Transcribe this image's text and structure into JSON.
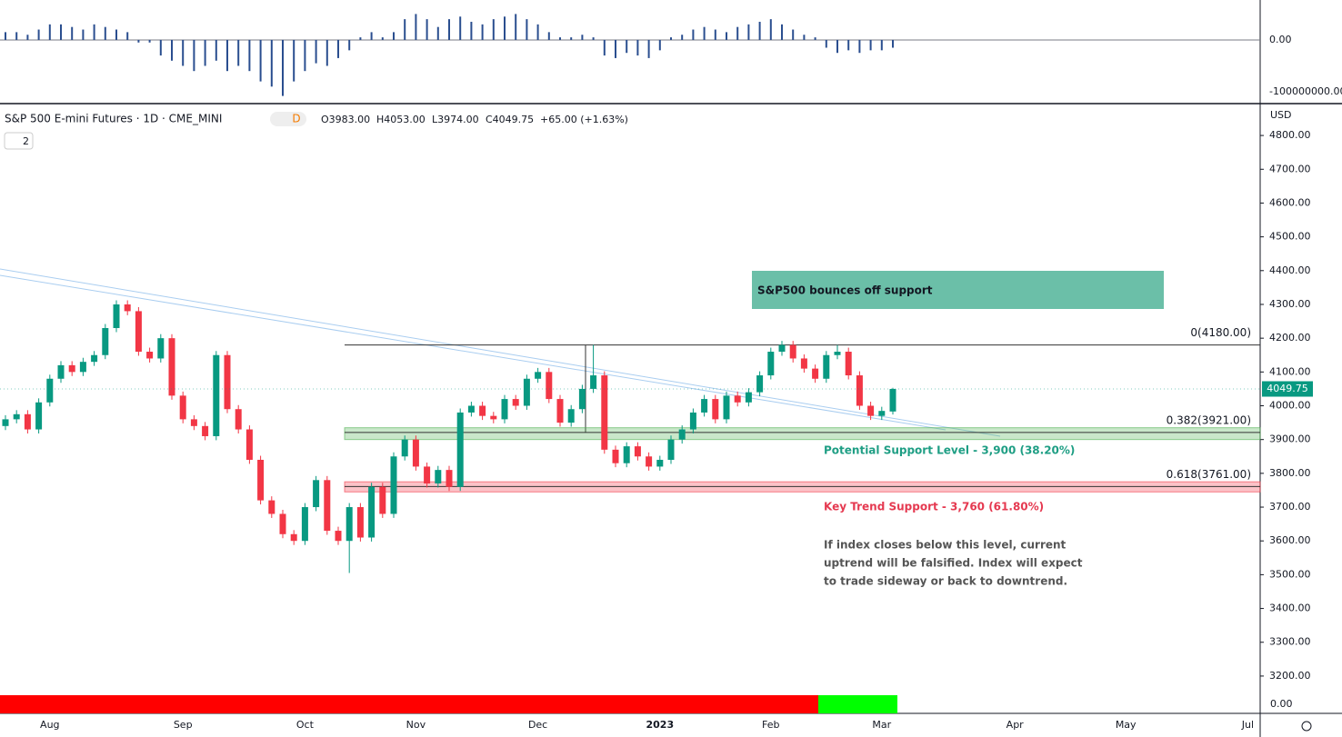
{
  "header": {
    "symbol": "S&P 500 E-mini Futures · 1D · CME_MINI",
    "interval_badge": "D",
    "open": "O3983.00",
    "high": "H4053.00",
    "low": "L3974.00",
    "close": "C4049.75",
    "change": "+65.00 (+1.63%)",
    "indicator_count": "2"
  },
  "bottom_panel": {
    "label": "0.00"
  },
  "chart_data": [
    {
      "type": "bar",
      "color": "#2a4e8f",
      "ylim": [
        -121000000,
        77000000
      ],
      "yticks": [
        {
          "value": 0,
          "label": "0.00"
        },
        {
          "value": -100000000,
          "label": "-100000000.00"
        }
      ],
      "values": [
        15000000.0,
        15000000.0,
        10000000.0,
        20000000.0,
        30000000.0,
        30000000.0,
        25000000.0,
        20000000.0,
        30000000.0,
        25000000.0,
        20000000.0,
        15000000.0,
        -5000000.0,
        -5000000.0,
        -30000000.0,
        -40000000.0,
        -50000000.0,
        -60000000.0,
        -50000000.0,
        -40000000.0,
        -60000000.0,
        -50000000.0,
        -60000000.0,
        -80000000.0,
        -90000000.0,
        -108000000.0,
        -80000000.0,
        -60000000.0,
        -45000000.0,
        -50000000.0,
        -35000000.0,
        -20000000.0,
        5000000.0,
        15000000.0,
        5000000.0,
        15000000.0,
        40000000.0,
        50000000.0,
        40000000.0,
        25000000.0,
        40000000.0,
        45000000.0,
        35000000.0,
        30000000.0,
        40000000.0,
        45000000.0,
        50000000.0,
        40000000.0,
        30000000.0,
        15000000.0,
        5000000.0,
        5000000.0,
        10000000.0,
        5000000.0,
        -30000000.0,
        -35000000.0,
        -25000000.0,
        -30000000.0,
        -35000000.0,
        -20000000.0,
        5000000.0,
        10000000.0,
        20000000.0,
        25000000.0,
        20000000.0,
        15000000.0,
        25000000.0,
        30000000.0,
        35000000.0,
        40000000.0,
        30000000.0,
        20000000.0,
        10000000.0,
        5000000.0,
        -15000000.0,
        -25000000.0,
        -20000000.0,
        -25000000.0,
        -20000000.0,
        -20000000.0,
        -15000000.0
      ]
    },
    {
      "type": "candlestick",
      "title": "S&P500 bounces off support",
      "currency": "USD",
      "up_color": "#089981",
      "down_color": "#f23645",
      "ylim": [
        3146,
        4889
      ],
      "yticks": [
        {
          "value": 3200,
          "label": "3200.00"
        },
        {
          "value": 3300,
          "label": "3300.00"
        },
        {
          "value": 3400,
          "label": "3400.00"
        },
        {
          "value": 3500,
          "label": "3500.00"
        },
        {
          "value": 3600,
          "label": "3600.00"
        },
        {
          "value": 3700,
          "label": "3700.00"
        },
        {
          "value": 3800,
          "label": "3800.00"
        },
        {
          "value": 3900,
          "label": "3900.00"
        },
        {
          "value": 4000,
          "label": "4000.00"
        },
        {
          "value": 4100,
          "label": "4100.00"
        },
        {
          "value": 4200,
          "label": "4200.00"
        },
        {
          "value": 4300,
          "label": "4300.00"
        },
        {
          "value": 4400,
          "label": "4400.00"
        },
        {
          "value": 4500,
          "label": "4500.00"
        },
        {
          "value": 4600,
          "label": "4600.00"
        },
        {
          "value": 4700,
          "label": "4700.00"
        },
        {
          "value": 4800,
          "label": "4800.00"
        }
      ],
      "last_price": {
        "value": 4049.75,
        "label": "4049.75"
      },
      "fib_levels": [
        {
          "value": 4180,
          "label": "0(4180.00)"
        },
        {
          "value": 3921,
          "label": "0.382(3921.00)"
        },
        {
          "value": 3761,
          "label": "0.618(3761.00)"
        }
      ],
      "zones": [
        {
          "name": "Potential Support Level - 3,900 (38.20%)",
          "range": [
            3900,
            3935
          ],
          "color": "#4caf50",
          "text_color": "#1e9e84"
        },
        {
          "name": "Key Trend Support - 3,760 (61.80%)",
          "range": [
            3745,
            3775
          ],
          "color": "#f23645",
          "text_color": "#e53950"
        }
      ],
      "note": [
        "If index closes below this level, current",
        "uptrend will be falsified. Index will expect",
        "to trade sideway or back to downtrend."
      ],
      "categories": [
        null,
        null,
        null,
        null,
        "Aug",
        null,
        null,
        null,
        null,
        null,
        null,
        null,
        null,
        null,
        null,
        null,
        "Sep",
        null,
        null,
        null,
        null,
        null,
        null,
        null,
        null,
        null,
        null,
        "Oct",
        null,
        null,
        null,
        null,
        null,
        null,
        null,
        null,
        null,
        "Nov",
        null,
        null,
        null,
        null,
        null,
        null,
        null,
        null,
        null,
        null,
        "Dec",
        null,
        null,
        null,
        null,
        null,
        null,
        null,
        null,
        null,
        null,
        "2023",
        null,
        null,
        null,
        null,
        null,
        null,
        null,
        null,
        null,
        "Feb",
        null,
        null,
        null,
        null,
        null,
        null,
        null,
        null,
        null,
        "Mar",
        null,
        null,
        null,
        null,
        null,
        null,
        null,
        null,
        null,
        null,
        null,
        "Apr",
        null,
        null,
        null,
        null,
        null,
        null,
        null,
        null,
        null,
        "May",
        null,
        null,
        null,
        null,
        null,
        null,
        null,
        null,
        null,
        null,
        "Jul"
      ],
      "open": [
        3940,
        3960,
        3975,
        3930,
        4010,
        4080,
        4120,
        4100,
        4130,
        4150,
        4230,
        4300,
        4280,
        4160,
        4140,
        4200,
        4030,
        3960,
        3940,
        3910,
        4150,
        3990,
        3930,
        3840,
        3720,
        3680,
        3620,
        3600,
        3700,
        3780,
        3630,
        3600,
        3700,
        3610,
        3760,
        3680,
        3850,
        3900,
        3820,
        3770,
        3810,
        3760,
        3980,
        4000,
        3970,
        3960,
        4020,
        4000,
        4080,
        4100,
        4020,
        3950,
        3990,
        4050,
        4090,
        3870,
        3830,
        3880,
        3850,
        3820,
        3840,
        3900,
        3930,
        3980,
        4020,
        3960,
        4030,
        4010,
        4040,
        4090,
        4160,
        4180,
        4140,
        4110,
        4080,
        4150,
        4160,
        4090,
        4000,
        3970,
        3983,
        null,
        null,
        null,
        null,
        null,
        null,
        null,
        null,
        null,
        null,
        null,
        null,
        null,
        null,
        null,
        null,
        null,
        null,
        null,
        null,
        null,
        null,
        null,
        null,
        null,
        null,
        null,
        null,
        null,
        null,
        null,
        null
      ],
      "high": [
        3972,
        3987,
        3987,
        4022,
        4092,
        4132,
        4132,
        4142,
        4162,
        4242,
        4312,
        4312,
        4292,
        4172,
        4212,
        4212,
        4042,
        3972,
        3952,
        4162,
        4162,
        4002,
        3942,
        3852,
        3732,
        3692,
        3632,
        3712,
        3792,
        3792,
        3642,
        3712,
        3712,
        3772,
        3772,
        3862,
        3912,
        3912,
        3832,
        3822,
        3822,
        3992,
        4012,
        4012,
        3982,
        4032,
        4032,
        4092,
        4112,
        4112,
        4032,
        4002,
        4062,
        4180,
        4102,
        3882,
        3892,
        3892,
        3862,
        3852,
        3912,
        3942,
        3992,
        4032,
        4032,
        4042,
        4042,
        4052,
        4102,
        4172,
        4192,
        4192,
        4152,
        4122,
        4162,
        4180,
        4172,
        4102,
        4012,
        3997,
        4053,
        null,
        null,
        null,
        null,
        null,
        null,
        null,
        null,
        null,
        null,
        null,
        null,
        null,
        null,
        null,
        null,
        null,
        null,
        null,
        null,
        null,
        null,
        null,
        null,
        null,
        null,
        null,
        null,
        null,
        null,
        null,
        null
      ],
      "low": [
        3928,
        3948,
        3918,
        3918,
        3998,
        4068,
        4088,
        4088,
        4118,
        4138,
        4218,
        4268,
        4148,
        4128,
        4128,
        4018,
        3948,
        3928,
        3898,
        3898,
        3978,
        3918,
        3828,
        3708,
        3668,
        3608,
        3588,
        3588,
        3688,
        3618,
        3588,
        3505,
        3598,
        3598,
        3668,
        3668,
        3838,
        3808,
        3758,
        3758,
        3748,
        3748,
        3968,
        3958,
        3948,
        3948,
        3988,
        3988,
        4068,
        4008,
        3938,
        3938,
        3978,
        4038,
        3858,
        3818,
        3818,
        3838,
        3808,
        3808,
        3828,
        3888,
        3918,
        3968,
        3948,
        3948,
        3998,
        3998,
        4028,
        4078,
        4148,
        4128,
        4098,
        4068,
        4068,
        4138,
        4078,
        3988,
        3958,
        3958,
        3974,
        null,
        null,
        null,
        null,
        null,
        null,
        null,
        null,
        null,
        null,
        null,
        null,
        null,
        null,
        null,
        null,
        null,
        null,
        null,
        null,
        null,
        null,
        null,
        null,
        null,
        null,
        null,
        null,
        null,
        null,
        null,
        null
      ],
      "close": [
        3960,
        3975,
        3930,
        4010,
        4080,
        4120,
        4100,
        4130,
        4150,
        4230,
        4300,
        4280,
        4160,
        4140,
        4200,
        4030,
        3960,
        3940,
        3910,
        4150,
        3990,
        3930,
        3840,
        3720,
        3680,
        3620,
        3600,
        3700,
        3780,
        3630,
        3600,
        3700,
        3610,
        3760,
        3680,
        3850,
        3900,
        3820,
        3770,
        3810,
        3760,
        3980,
        4000,
        3970,
        3960,
        4020,
        4000,
        4080,
        4100,
        4020,
        3950,
        3990,
        4050,
        4090,
        3870,
        3830,
        3880,
        3850,
        3820,
        3840,
        3900,
        3930,
        3980,
        4020,
        3960,
        4030,
        4010,
        4040,
        4090,
        4160,
        4180,
        4140,
        4110,
        4080,
        4150,
        4160,
        4090,
        4000,
        3970,
        3984.75,
        4049.75,
        null,
        null,
        null,
        null,
        null,
        null,
        null,
        null,
        null,
        null,
        null,
        null,
        null,
        null,
        null,
        null,
        null,
        null,
        null,
        null,
        null,
        null,
        null,
        null,
        null,
        null,
        null,
        null,
        null,
        null,
        null,
        null
      ]
    }
  ]
}
